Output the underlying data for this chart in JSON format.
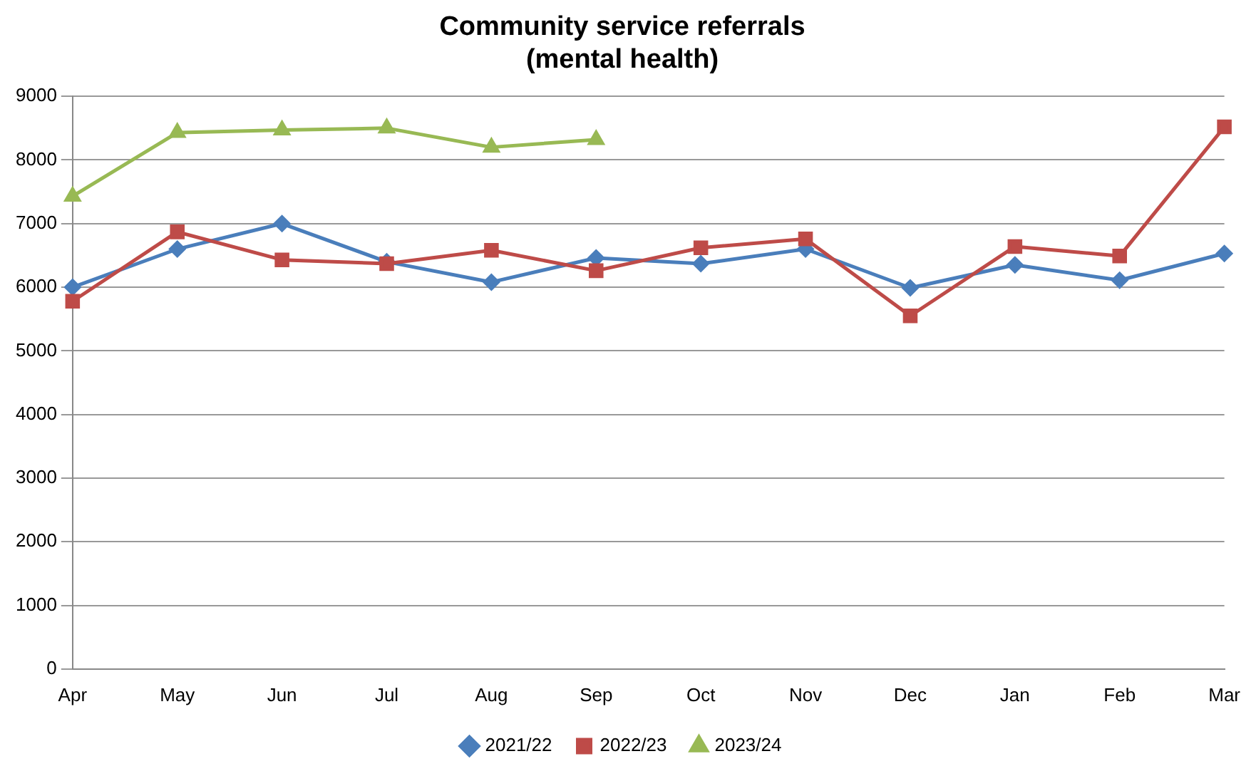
{
  "chart_data": {
    "type": "line",
    "title": "Community service referrals\n(mental health)",
    "categories": [
      "Apr",
      "May",
      "Jun",
      "Jul",
      "Aug",
      "Sep",
      "Oct",
      "Nov",
      "Dec",
      "Jan",
      "Feb",
      "Mar"
    ],
    "series": [
      {
        "name": "2021/22",
        "color": "#4a7ebb",
        "marker": "diamond",
        "values": [
          6000,
          6600,
          7000,
          6400,
          6080,
          6460,
          6370,
          6600,
          5990,
          6350,
          6110,
          6530
        ]
      },
      {
        "name": "2022/23",
        "color": "#be4b48",
        "marker": "square",
        "values": [
          5780,
          6870,
          6430,
          6370,
          6580,
          6260,
          6620,
          6760,
          5550,
          6640,
          6490,
          8520
        ]
      },
      {
        "name": "2023/24",
        "color": "#98b954",
        "marker": "triangle",
        "values": [
          7430,
          8430,
          8470,
          8500,
          8200,
          8320,
          null,
          null,
          null,
          null,
          null,
          null
        ]
      }
    ],
    "ylim": [
      0,
      9000
    ],
    "yticks": [
      0,
      1000,
      2000,
      3000,
      4000,
      5000,
      6000,
      7000,
      8000,
      9000
    ],
    "grid": "y",
    "legend": "bottom"
  }
}
